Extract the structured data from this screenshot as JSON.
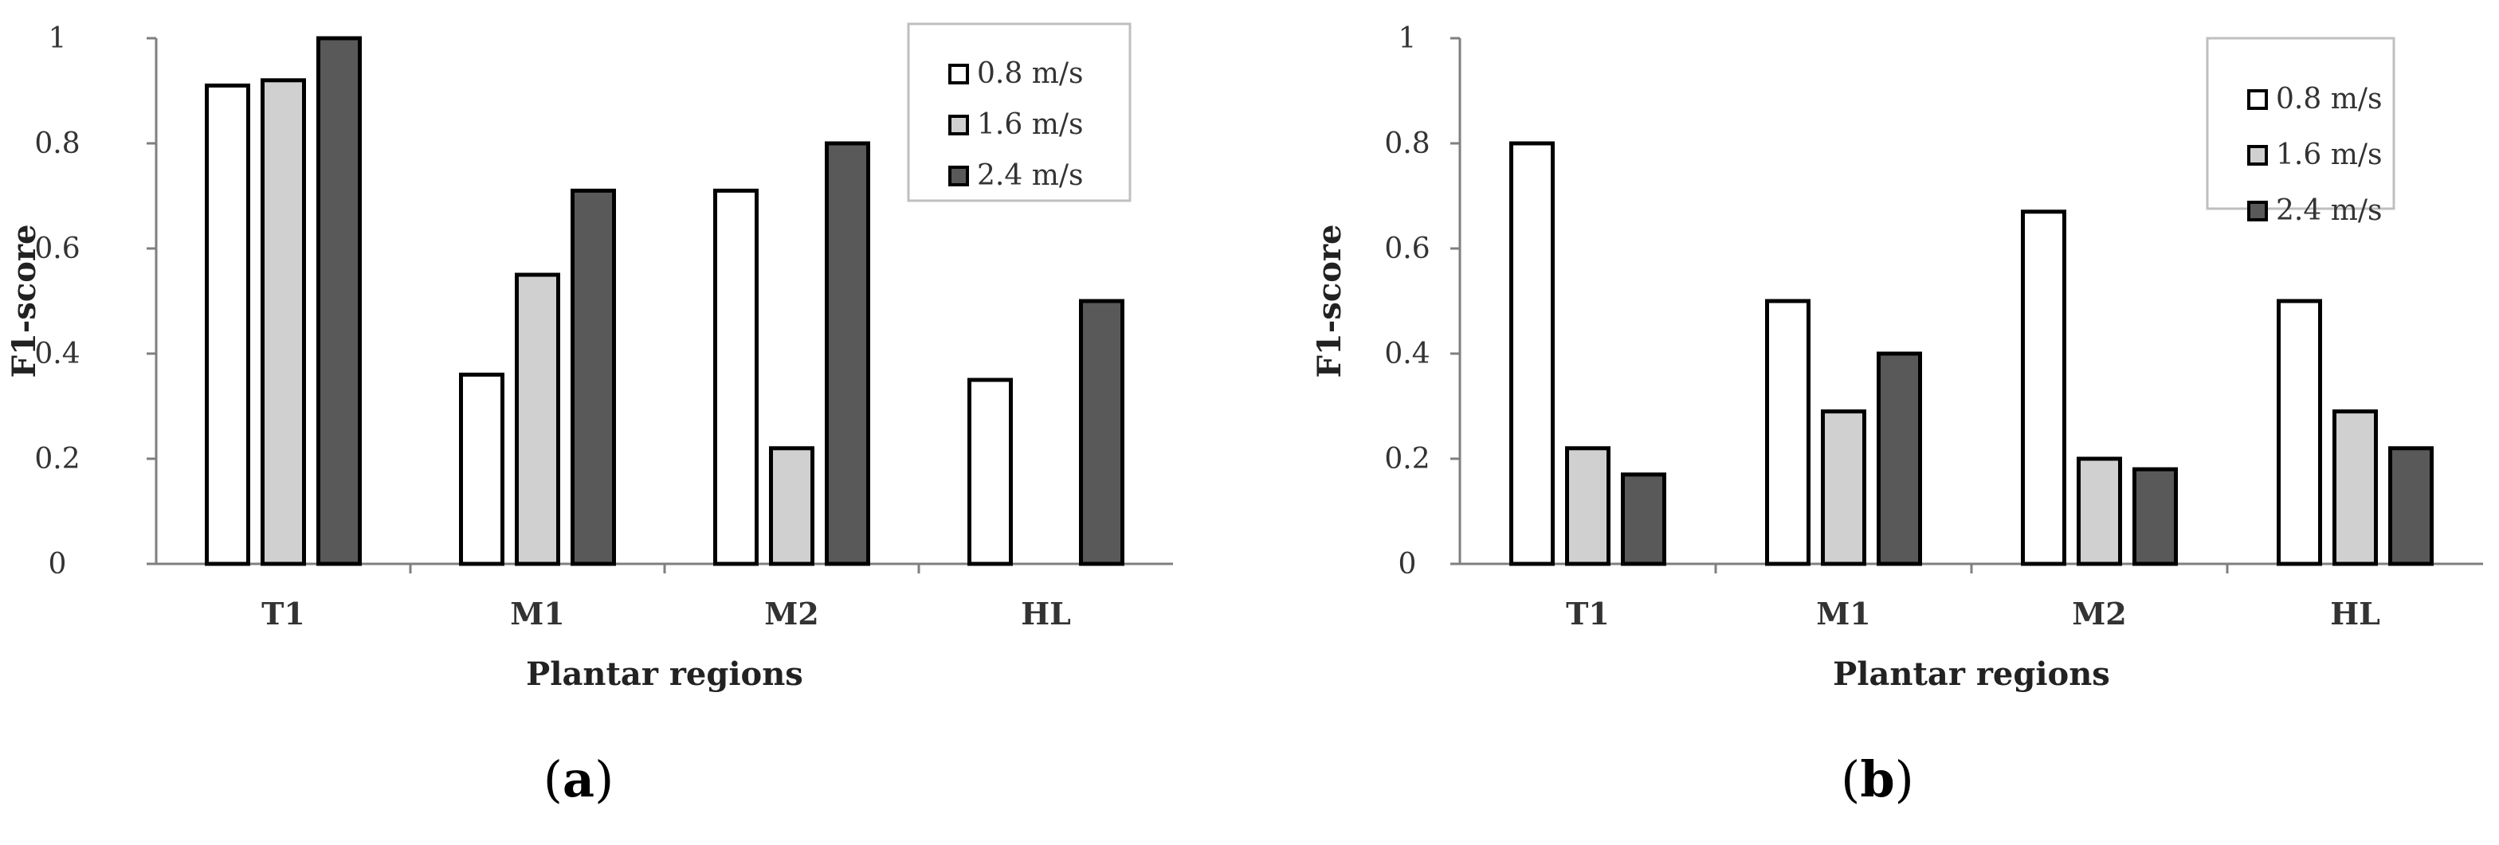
{
  "colors": {
    "series_0.8": "#ffffff",
    "series_1.6": "#d0d0d0",
    "series_2.4": "#595959",
    "bar_edge": "#000000",
    "axis": "#7f7f7f"
  },
  "chart_data": [
    {
      "type": "bar",
      "panel": "a",
      "caption_open": "(",
      "caption_letter": "a",
      "caption_close": ")",
      "xlabel": "Plantar regions",
      "ylabel": "F1-score",
      "ylim": [
        0,
        1
      ],
      "yticks": [
        "0",
        "0.2",
        "0.4",
        "0.6",
        "0.8",
        "1"
      ],
      "categories": [
        "T1",
        "M1",
        "M2",
        "HL"
      ],
      "legend_position": "top-right",
      "series": [
        {
          "name": "0.8 m/s",
          "color": "#ffffff",
          "values": [
            0.91,
            0.36,
            0.71,
            0.35
          ]
        },
        {
          "name": "1.6 m/s",
          "color": "#d0d0d0",
          "values": [
            0.92,
            0.55,
            0.22,
            0
          ]
        },
        {
          "name": "2.4 m/s",
          "color": "#595959",
          "values": [
            1.0,
            0.71,
            0.8,
            0.5
          ]
        }
      ]
    },
    {
      "type": "bar",
      "panel": "b",
      "caption_open": "(",
      "caption_letter": "b",
      "caption_close": ")",
      "xlabel": "Plantar regions",
      "ylabel": "F1-score",
      "ylim": [
        0,
        1
      ],
      "yticks": [
        "0",
        "0.2",
        "0.4",
        "0.6",
        "0.8",
        "1"
      ],
      "categories": [
        "T1",
        "M1",
        "M2",
        "HL"
      ],
      "legend_position": "top-right",
      "series": [
        {
          "name": "0.8 m/s",
          "color": "#ffffff",
          "values": [
            0.8,
            0.5,
            0.67,
            0.5
          ]
        },
        {
          "name": "1.6 m/s",
          "color": "#d0d0d0",
          "values": [
            0.22,
            0.29,
            0.2,
            0.29
          ]
        },
        {
          "name": "2.4 m/s",
          "color": "#595959",
          "values": [
            0.17,
            0.4,
            0.18,
            0.22
          ]
        }
      ]
    }
  ]
}
